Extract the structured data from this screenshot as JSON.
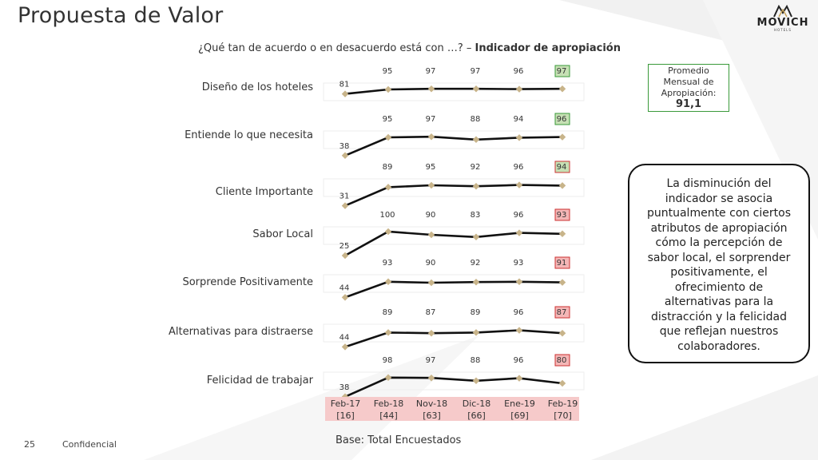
{
  "title": "Propuesta de Valor",
  "brand": {
    "name": "MOVICH",
    "sub": "HOTELS"
  },
  "question": {
    "text": "¿Qué tan de acuerdo o en desacuerdo está con …? – ",
    "bold": "Indicador de apropiación"
  },
  "average": {
    "label": "Promedio Mensual de Apropiación:",
    "value": "91,1"
  },
  "note": "La disminución del indicador se asocia puntualmente con ciertos atributos de apropiación cómo la percepción de sabor local, el sorprender positivamente, el ofrecimiento de alternativas para la distracción y la felicidad que reflejan nuestros colaboradores.",
  "footer": {
    "base": "Base: Total Encuestados",
    "page": "25",
    "confidential": "Confidencial"
  },
  "colors": {
    "line": "#111111",
    "marker": "#c8b48a",
    "highlight_green": "#c6e0b4",
    "highlight_red": "#f4b6b6",
    "axis_bg": "#f6caca",
    "avg_border": "#3a9a3a"
  },
  "chart_data": {
    "type": "line",
    "categories": [
      "Feb-17",
      "Feb-18",
      "Nov-18",
      "Dic-18",
      "Ene-19",
      "Feb-19"
    ],
    "sample_sizes": [
      "[16]",
      "[44]",
      "[63]",
      "[66]",
      "[69]",
      "[70]"
    ],
    "series": [
      {
        "name": "Diseño de los hoteles",
        "values": [
          81,
          95,
          97,
          97,
          96,
          97
        ],
        "last_highlight": "green"
      },
      {
        "name": "Entiende lo que necesita",
        "values": [
          38,
          95,
          97,
          88,
          94,
          96
        ],
        "last_highlight": "green"
      },
      {
        "name": "Cliente Importante",
        "values": [
          31,
          89,
          95,
          92,
          96,
          94
        ],
        "last_highlight": "green-red"
      },
      {
        "name": "Sabor Local",
        "values": [
          25,
          100,
          90,
          83,
          96,
          93
        ],
        "last_highlight": "red"
      },
      {
        "name": "Sorprende Positivamente",
        "values": [
          44,
          93,
          90,
          92,
          93,
          91
        ],
        "last_highlight": "red"
      },
      {
        "name": "Alternativas para distraerse",
        "values": [
          44,
          89,
          87,
          89,
          96,
          87
        ],
        "last_highlight": "red"
      },
      {
        "name": "Felicidad de trabajar",
        "values": [
          38,
          98,
          97,
          88,
          96,
          80
        ],
        "last_highlight": "red"
      }
    ]
  }
}
